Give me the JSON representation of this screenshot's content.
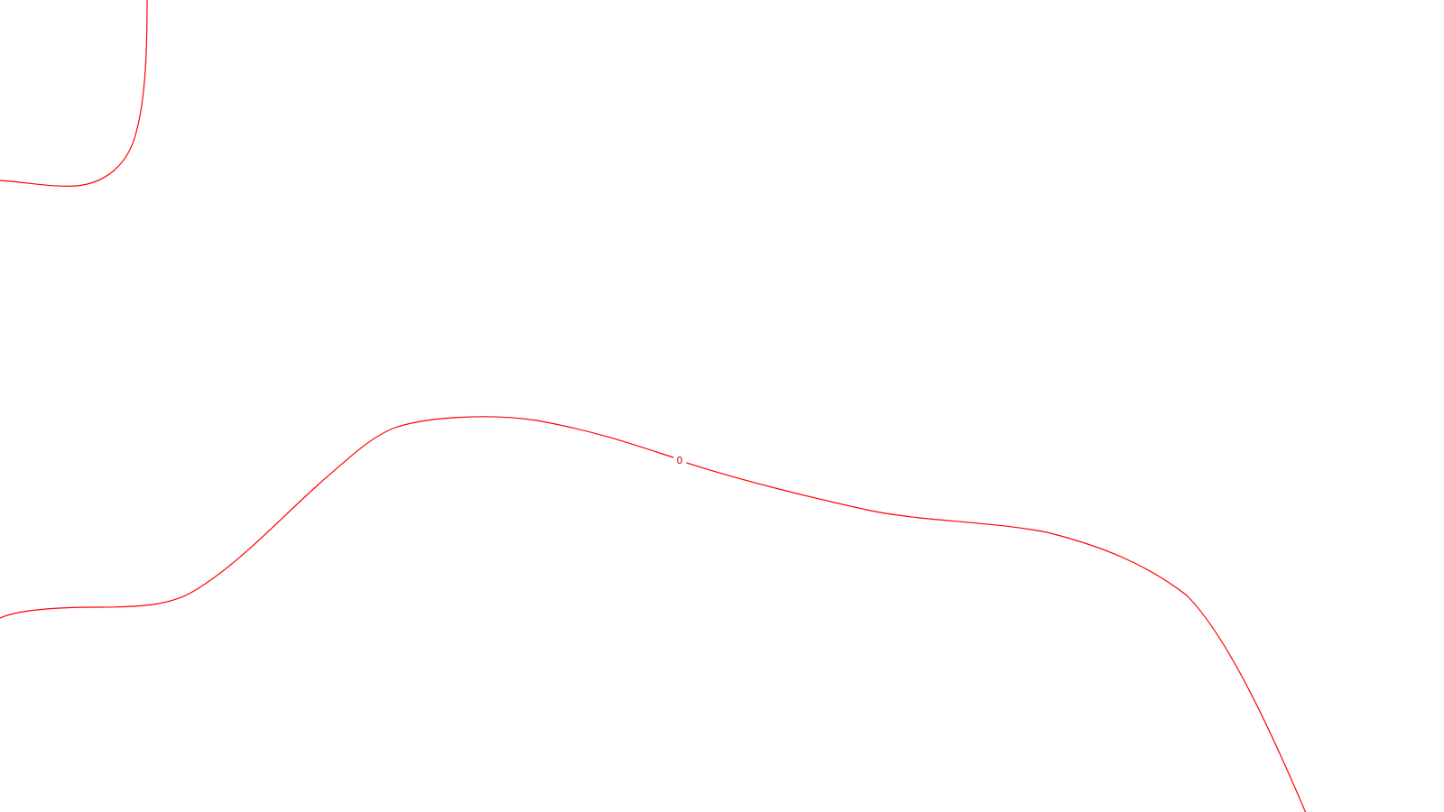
{
  "map": {
    "background_color": "#ffffff",
    "line_color": "#ff0000",
    "label_color": "#cc0000",
    "contours": [
      {
        "name": "upper-left-contour",
        "label": ""
      },
      {
        "name": "main-contour",
        "label": "0"
      }
    ]
  }
}
